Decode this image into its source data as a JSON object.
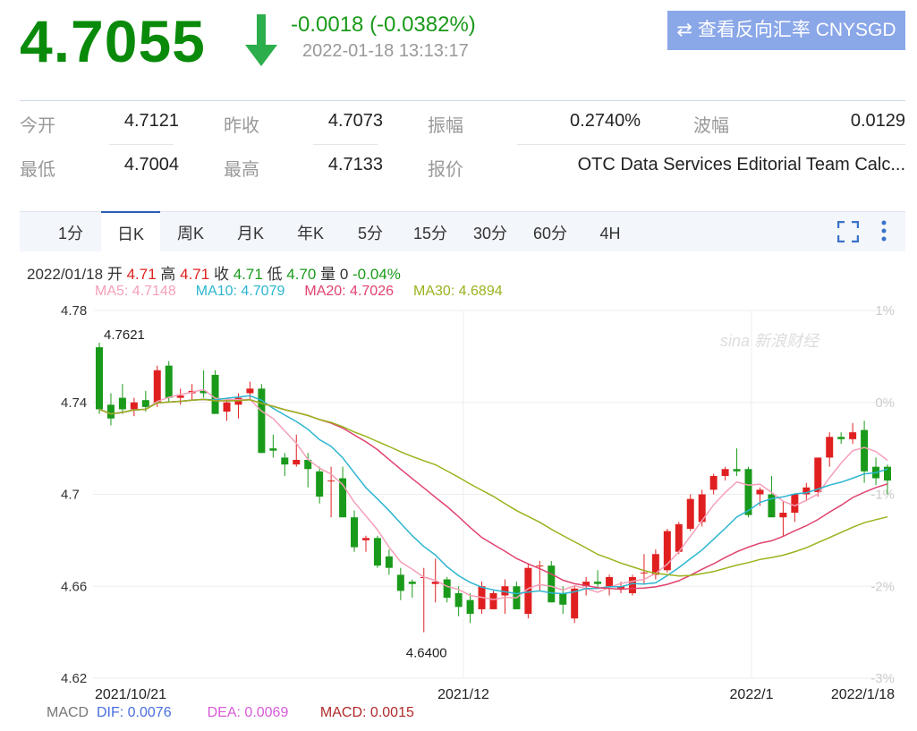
{
  "quote": {
    "price": "4.7055",
    "change": "-0.0018 (-0.0382%)",
    "time": "2022-01-18 13:13:17",
    "direction_icon": "arrow-down-icon",
    "reverse_button": "查看反向汇率 CNYSGD",
    "reverse_icon": "swap-icon"
  },
  "stats": [
    {
      "label": "今开",
      "value": "4.7121"
    },
    {
      "label": "昨收",
      "value": "4.7073"
    },
    {
      "label": "振幅",
      "value": "0.2740%"
    },
    {
      "label": "波幅",
      "value": "0.0129"
    },
    {
      "label": "最低",
      "value": "4.7004"
    },
    {
      "label": "最高",
      "value": "4.7133"
    },
    {
      "label": "报价",
      "value": "OTC Data Services Editorial Team Calc..."
    }
  ],
  "tabs": [
    "1分",
    "日K",
    "周K",
    "月K",
    "年K",
    "5分",
    "15分",
    "30分",
    "60分",
    "4H"
  ],
  "active_tab": "日K",
  "tools": {
    "fullscreen_icon": "fullscreen-icon",
    "more_icon": "more-vertical-icon"
  },
  "info": {
    "date": "2022/01/18",
    "open_label": "开",
    "open": "4.71",
    "high_label": "高",
    "high": "4.71",
    "close_label": "收",
    "close": "4.71",
    "low_label": "低",
    "low": "4.70",
    "vol_label": "量",
    "vol": "0",
    "pct": "-0.04%"
  },
  "ma": [
    {
      "label": "MA5: 4.7148",
      "color": "#f4a0b8"
    },
    {
      "label": "MA10: 4.7079",
      "color": "#2bb5d0"
    },
    {
      "label": "MA20: 4.7026",
      "color": "#e0426e"
    },
    {
      "label": "MA30: 4.6894",
      "color": "#9ab21c"
    }
  ],
  "colors": {
    "up": "#e02020",
    "down": "#1a9a1a"
  },
  "chart_data": {
    "type": "candlestick",
    "y_ticks": [
      "4.78",
      "4.74",
      "4.7",
      "4.66",
      "4.62"
    ],
    "ylim": [
      4.62,
      4.78
    ],
    "pct_ticks": [
      "1%",
      "0%",
      "-1%",
      "-2%",
      "-3%"
    ],
    "x_ticks": [
      "2021/10/21",
      "2021/12",
      "2022/1",
      "2022/1/18"
    ],
    "annotations": {
      "max": "4.7621",
      "min": "4.6400"
    },
    "watermark": "sina新浪财经",
    "ohlc": [
      [
        4.764,
        4.766,
        4.735,
        4.737
      ],
      [
        4.739,
        4.744,
        4.73,
        4.733
      ],
      [
        4.742,
        4.748,
        4.735,
        4.737
      ],
      [
        4.737,
        4.742,
        4.734,
        4.74
      ],
      [
        4.741,
        4.745,
        4.736,
        4.738
      ],
      [
        4.74,
        4.756,
        4.738,
        4.754
      ],
      [
        4.756,
        4.758,
        4.74,
        4.742
      ],
      [
        4.742,
        4.746,
        4.739,
        4.743
      ],
      [
        4.744,
        4.748,
        4.741,
        4.745
      ],
      [
        4.745,
        4.754,
        4.742,
        4.744
      ],
      [
        4.752,
        4.754,
        4.735,
        4.735
      ],
      [
        4.736,
        4.742,
        4.732,
        4.74
      ],
      [
        4.739,
        4.744,
        4.733,
        4.742
      ],
      [
        4.744,
        4.749,
        4.741,
        4.746
      ],
      [
        4.746,
        4.748,
        4.718,
        4.718
      ],
      [
        4.72,
        4.726,
        4.716,
        4.719
      ],
      [
        4.716,
        4.718,
        4.708,
        4.713
      ],
      [
        4.713,
        4.726,
        4.712,
        4.715
      ],
      [
        4.715,
        4.718,
        4.703,
        4.711
      ],
      [
        4.71,
        4.712,
        4.696,
        4.699
      ],
      [
        4.706,
        4.712,
        4.69,
        4.706
      ],
      [
        4.707,
        4.712,
        4.69,
        4.69
      ],
      [
        4.69,
        4.693,
        4.675,
        4.677
      ],
      [
        4.68,
        4.682,
        4.675,
        4.681
      ],
      [
        4.681,
        4.682,
        4.668,
        4.669
      ],
      [
        4.673,
        4.676,
        4.665,
        4.668
      ],
      [
        4.665,
        4.668,
        4.654,
        4.658
      ],
      [
        4.662,
        4.663,
        4.655,
        4.661
      ],
      [
        4.664,
        4.668,
        4.64,
        4.664
      ],
      [
        4.661,
        4.672,
        4.653,
        4.662
      ],
      [
        4.663,
        4.664,
        4.653,
        4.655
      ],
      [
        4.657,
        4.66,
        4.647,
        4.651
      ],
      [
        4.654,
        4.657,
        4.644,
        4.648
      ],
      [
        4.65,
        4.662,
        4.648,
        4.66
      ],
      [
        4.65,
        4.658,
        4.65,
        4.657
      ],
      [
        4.656,
        4.663,
        4.648,
        4.66
      ],
      [
        4.66,
        4.662,
        4.65,
        4.65
      ],
      [
        4.648,
        4.67,
        4.646,
        4.668
      ],
      [
        4.669,
        4.671,
        4.658,
        4.669
      ],
      [
        4.669,
        4.671,
        4.653,
        4.653
      ],
      [
        4.657,
        4.66,
        4.648,
        4.652
      ],
      [
        4.646,
        4.66,
        4.644,
        4.659
      ],
      [
        4.66,
        4.664,
        4.656,
        4.662
      ],
      [
        4.662,
        4.667,
        4.659,
        4.661
      ],
      [
        4.66,
        4.665,
        4.656,
        4.664
      ],
      [
        4.659,
        4.662,
        4.657,
        4.66
      ],
      [
        4.657,
        4.665,
        4.656,
        4.664
      ],
      [
        4.666,
        4.674,
        4.661,
        4.666
      ],
      [
        4.665,
        4.676,
        4.663,
        4.674
      ],
      [
        4.667,
        4.685,
        4.666,
        4.684
      ],
      [
        4.675,
        4.688,
        4.674,
        4.687
      ],
      [
        4.685,
        4.7,
        4.684,
        4.698
      ],
      [
        4.688,
        4.702,
        4.686,
        4.7
      ],
      [
        4.702,
        4.709,
        4.7,
        4.708
      ],
      [
        4.708,
        4.712,
        4.706,
        4.711
      ],
      [
        4.711,
        4.72,
        4.708,
        4.71
      ],
      [
        4.711,
        4.712,
        4.69,
        4.691
      ],
      [
        4.7,
        4.703,
        4.695,
        4.702
      ],
      [
        4.7,
        4.708,
        4.69,
        4.69
      ],
      [
        4.69,
        4.697,
        4.682,
        4.692
      ],
      [
        4.692,
        4.7,
        4.688,
        4.7
      ],
      [
        4.7,
        4.705,
        4.697,
        4.703
      ],
      [
        4.701,
        4.716,
        4.699,
        4.716
      ],
      [
        4.716,
        4.727,
        4.712,
        4.725
      ],
      [
        4.725,
        4.727,
        4.722,
        4.724
      ],
      [
        4.724,
        4.731,
        4.722,
        4.727
      ],
      [
        4.728,
        4.732,
        4.705,
        4.71
      ],
      [
        4.712,
        4.716,
        4.704,
        4.707
      ],
      [
        4.712,
        4.713,
        4.7,
        4.706
      ]
    ],
    "ma_periods": [
      5,
      10,
      20,
      30
    ]
  },
  "macd": {
    "label": "MACD",
    "dif": "DIF: 0.0076",
    "dea": "DEA: 0.0069",
    "macd": "MACD: 0.0015"
  }
}
